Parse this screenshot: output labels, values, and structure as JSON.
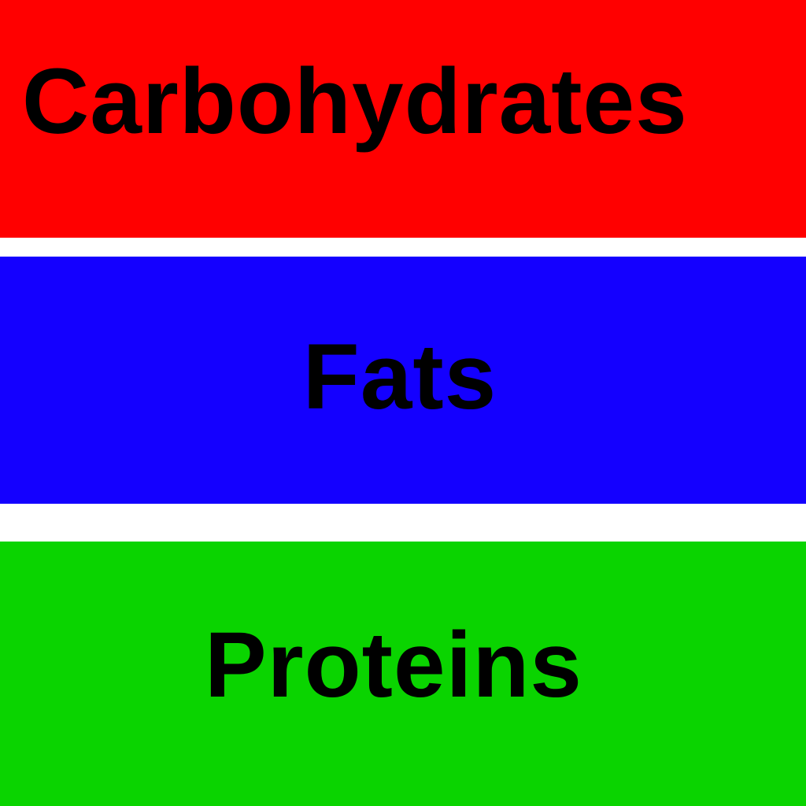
{
  "bands": [
    {
      "label": "Carbohydrates",
      "color": "#ff0000"
    },
    {
      "label": "Fats",
      "color": "#1400ff"
    },
    {
      "label": "Proteins",
      "color": "#0ad400"
    }
  ],
  "background_color": "#ffffff",
  "text_color": "#000000"
}
